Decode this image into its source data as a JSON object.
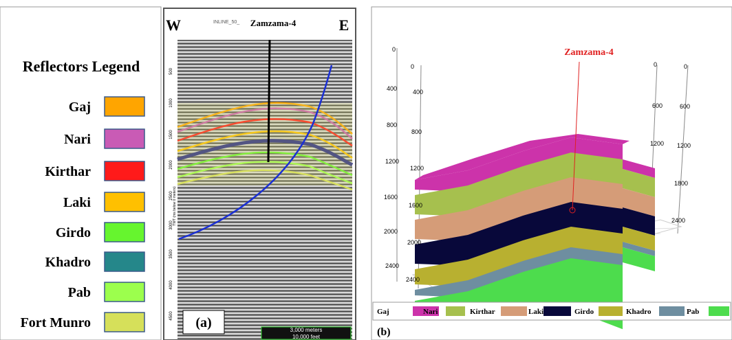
{
  "legend": {
    "title": "Reflectors Legend",
    "items": [
      {
        "name": "Gaj",
        "color": "#ffa500"
      },
      {
        "name": "Nari",
        "color": "#c95bb5"
      },
      {
        "name": "Kirthar",
        "color": "#ff1a1a"
      },
      {
        "name": "Laki",
        "color": "#ffc000"
      },
      {
        "name": "Girdo",
        "color": "#66f52e"
      },
      {
        "name": "Khadro",
        "color": "#25878a"
      },
      {
        "name": "Pab",
        "color": "#9cff4d"
      },
      {
        "name": "Fort Munro",
        "color": "#d6e05a"
      }
    ]
  },
  "panel_a": {
    "label": "(a)",
    "west": "W",
    "east": "E",
    "line_name": "INLINE_50_",
    "well": "Zamzama-4",
    "depth_ticks": [
      500,
      1000,
      1500,
      2000,
      2500,
      3000,
      3500,
      4000,
      4500
    ],
    "axis_label": "TWT (ms below 0 meters)",
    "scale": [
      "3,000 meters",
      "10,000 feet"
    ]
  },
  "panel_b": {
    "label": "(b)",
    "well": "Zamzama-4",
    "outer_ticks": [
      0,
      400,
      800,
      1200,
      1600,
      2000,
      2400
    ],
    "inner_ticks": [
      0,
      400,
      800,
      1200,
      1600,
      2000,
      2400
    ],
    "right_ticks_1": [
      0,
      600,
      1200
    ],
    "right_ticks_2": [
      0,
      600,
      1200,
      1800,
      2400
    ],
    "legend": [
      {
        "name": "Gaj",
        "color": "#cc33aa"
      },
      {
        "name": "Nari",
        "color": "#a6c04e"
      },
      {
        "name": "Kirthar",
        "color": "#d59c78"
      },
      {
        "name": "Laki",
        "color": "#08083a"
      },
      {
        "name": "Girdo",
        "color": "#b8b030"
      },
      {
        "name": "Khadro",
        "color": "#6e8ea0"
      },
      {
        "name": "Pab",
        "color": "#4ddc4d"
      }
    ]
  }
}
